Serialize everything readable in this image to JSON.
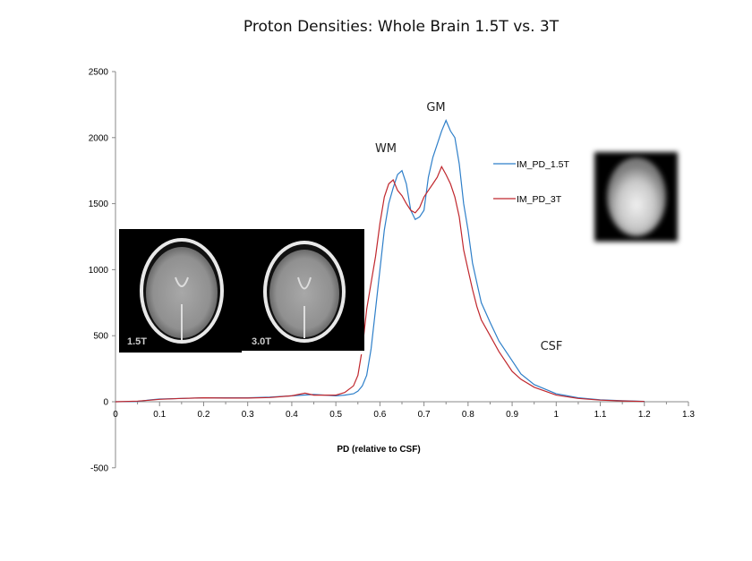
{
  "chart_data": {
    "type": "line",
    "title": "Proton Densities: Whole Brain 1.5T vs. 3T",
    "xlabel": "PD (relative to CSF)",
    "ylabel": "",
    "xlim": [
      0,
      1.3
    ],
    "ylim": [
      -500,
      2500
    ],
    "xticks": [
      "0",
      "0.1",
      "0.2",
      "0.3",
      "0.4",
      "0.5",
      "0.6",
      "0.7",
      "0.8",
      "0.9",
      "1",
      "1.1",
      "1.2",
      "1.3"
    ],
    "yticks": [
      "2500",
      "2000",
      "1500",
      "1000",
      "500",
      "0",
      "-500"
    ],
    "grid": false,
    "legend_position": "right",
    "annotations": [
      "WM",
      "GM",
      "CSF"
    ],
    "inset_labels": [
      "1.5T",
      "3.0T"
    ],
    "series": [
      {
        "name": "IM_PD_1.5T",
        "color": "#2e7fc9",
        "x": [
          0,
          0.05,
          0.08,
          0.1,
          0.15,
          0.2,
          0.25,
          0.3,
          0.35,
          0.4,
          0.45,
          0.5,
          0.52,
          0.54,
          0.55,
          0.56,
          0.57,
          0.58,
          0.59,
          0.6,
          0.61,
          0.62,
          0.63,
          0.64,
          0.65,
          0.66,
          0.67,
          0.68,
          0.69,
          0.7,
          0.71,
          0.72,
          0.73,
          0.74,
          0.75,
          0.76,
          0.77,
          0.78,
          0.79,
          0.8,
          0.81,
          0.82,
          0.83,
          0.85,
          0.87,
          0.9,
          0.92,
          0.95,
          1.0,
          1.05,
          1.1,
          1.15,
          1.2
        ],
        "y": [
          0,
          2,
          15,
          20,
          25,
          30,
          30,
          30,
          35,
          45,
          55,
          45,
          50,
          60,
          80,
          120,
          200,
          400,
          700,
          1000,
          1300,
          1500,
          1620,
          1720,
          1750,
          1650,
          1450,
          1380,
          1400,
          1450,
          1700,
          1850,
          1950,
          2050,
          2130,
          2050,
          2000,
          1800,
          1500,
          1300,
          1050,
          900,
          750,
          600,
          460,
          310,
          210,
          130,
          60,
          30,
          15,
          8,
          3
        ]
      },
      {
        "name": "IM_PD_3T",
        "color": "#c0272d",
        "x": [
          0,
          0.05,
          0.08,
          0.1,
          0.15,
          0.2,
          0.25,
          0.3,
          0.35,
          0.4,
          0.43,
          0.45,
          0.5,
          0.52,
          0.54,
          0.55,
          0.56,
          0.57,
          0.58,
          0.59,
          0.6,
          0.61,
          0.62,
          0.63,
          0.64,
          0.65,
          0.66,
          0.67,
          0.68,
          0.69,
          0.7,
          0.71,
          0.72,
          0.73,
          0.74,
          0.75,
          0.76,
          0.77,
          0.78,
          0.79,
          0.8,
          0.81,
          0.82,
          0.83,
          0.85,
          0.87,
          0.9,
          0.92,
          0.95,
          1.0,
          1.05,
          1.1,
          1.15,
          1.2
        ],
        "y": [
          0,
          5,
          12,
          18,
          25,
          30,
          28,
          28,
          32,
          45,
          65,
          50,
          50,
          70,
          120,
          200,
          400,
          700,
          900,
          1100,
          1350,
          1550,
          1650,
          1680,
          1600,
          1560,
          1500,
          1450,
          1430,
          1470,
          1550,
          1600,
          1650,
          1700,
          1780,
          1720,
          1650,
          1550,
          1400,
          1150,
          1000,
          850,
          720,
          620,
          500,
          380,
          230,
          170,
          110,
          50,
          25,
          12,
          6,
          2
        ]
      }
    ]
  }
}
